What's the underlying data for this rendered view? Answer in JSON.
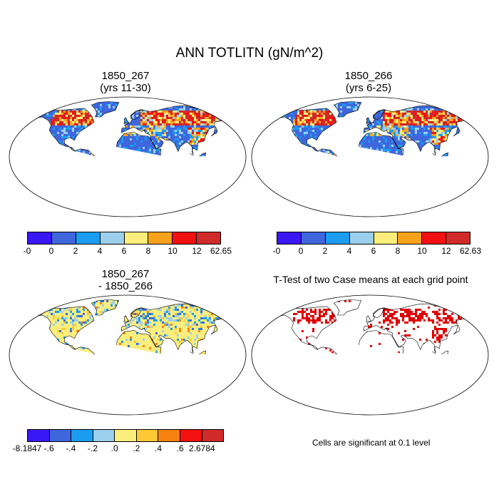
{
  "figure": {
    "title": "ANN TOTLITN (gN/m^2)"
  },
  "panels": [
    {
      "id": "case1",
      "title": "1850_267",
      "subtitle": "(yrs 11-30)",
      "kind": "field"
    },
    {
      "id": "case2",
      "title": "1850_266",
      "subtitle": "(yrs 6-25)",
      "kind": "field"
    },
    {
      "id": "diff",
      "title": "1850_267",
      "subtitle": "- 1850_266",
      "kind": "diff"
    },
    {
      "id": "ttest",
      "title": "T-Test of two Case means at each grid point",
      "subtitle": "",
      "kind": "ttest"
    }
  ],
  "colorbars": {
    "case1": {
      "colors": [
        "#3a17f5",
        "#3f66dc",
        "#1a9cf0",
        "#9ccfeb",
        "#fcee7c",
        "#f7a21b",
        "#f21010",
        "#d12a2a"
      ],
      "labels": [
        "-0",
        "0",
        "2",
        "4",
        "6",
        "8",
        "10",
        "12",
        "62.65"
      ]
    },
    "case2": {
      "colors": [
        "#3a17f5",
        "#3f66dc",
        "#1a9cf0",
        "#9ccfeb",
        "#fcee7c",
        "#f7a21b",
        "#f21010",
        "#d12a2a"
      ],
      "labels": [
        "-0",
        "0",
        "2",
        "4",
        "6",
        "8",
        "10",
        "12",
        "62.63"
      ]
    },
    "diff": {
      "colors": [
        "#3a17f5",
        "#3f66dc",
        "#1a9cf0",
        "#9ccfeb",
        "#fcee7c",
        "#fcc836",
        "#f7820f",
        "#f21010",
        "#d12a2a"
      ],
      "labels": [
        "-8.1847",
        "-.6",
        "-.4",
        "-.2",
        ".0",
        ".2",
        ".4",
        ".6",
        "2.6784"
      ]
    }
  },
  "note": "Cells are significant at 0.1 level",
  "colors": {
    "ocean": "#ffffff",
    "land_low": "#3f66dc",
    "antarctica_case": "#3f66dc",
    "antarctica_diff": "#fcee7c",
    "significant": "#e00000"
  }
}
